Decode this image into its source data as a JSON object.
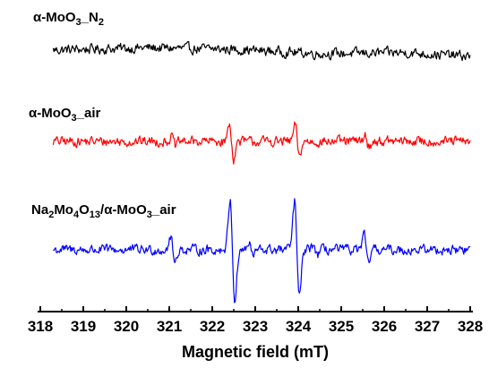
{
  "chart_data": {
    "type": "line",
    "title": "",
    "xlabel": "Magnetic field (mT)",
    "ylabel": "",
    "xlim": [
      318,
      328
    ],
    "x_ticks": [
      "318",
      "319",
      "320",
      "321",
      "322",
      "323",
      "324",
      "325",
      "326",
      "327",
      "328"
    ],
    "y_axis_visible": false,
    "grid": false,
    "legend": "none (series labels printed above each trace)",
    "x_range": [
      318.3,
      328
    ],
    "series": [
      {
        "name": "α-MoO3_N2",
        "label_parts": [
          {
            "t": "α-MoO",
            "sub": false
          },
          {
            "t": "3",
            "sub": true
          },
          {
            "t": "_N",
            "sub": false
          },
          {
            "t": "2",
            "sub": true
          }
        ],
        "color": "#000000",
        "noise": 0.9,
        "trend": [
          [
            318.3,
            0.2
          ],
          [
            320.5,
            0.6
          ],
          [
            322.5,
            0.3
          ],
          [
            324.5,
            -0.5
          ],
          [
            326.5,
            -0.3
          ],
          [
            328,
            -1.0
          ]
        ],
        "features": []
      },
      {
        "name": "α-MoO3_air",
        "label_parts": [
          {
            "t": "α-MoO",
            "sub": false
          },
          {
            "t": "3",
            "sub": true
          },
          {
            "t": "_air",
            "sub": false
          }
        ],
        "color": "#ff0000",
        "noise": 0.9,
        "trend": [
          [
            318.3,
            0
          ],
          [
            328,
            0
          ]
        ],
        "features": [
          {
            "x": 322.45,
            "amp": 3.2,
            "w": 0.05
          },
          {
            "x": 323.98,
            "amp": 3.0,
            "w": 0.05
          },
          {
            "x": 321.1,
            "amp": 0.9,
            "w": 0.05
          },
          {
            "x": 325.6,
            "amp": 1.0,
            "w": 0.05
          }
        ]
      },
      {
        "name": "Na2Mo4O13/α-MoO3_air",
        "label_parts": [
          {
            "t": "Na",
            "sub": false
          },
          {
            "t": "2",
            "sub": true
          },
          {
            "t": "Mo",
            "sub": false
          },
          {
            "t": "4",
            "sub": true
          },
          {
            "t": "O",
            "sub": false
          },
          {
            "t": "13",
            "sub": true
          },
          {
            "t": "/α-MoO",
            "sub": false
          },
          {
            "t": "3",
            "sub": true
          },
          {
            "t": "_air",
            "sub": false
          }
        ],
        "color": "#0000ff",
        "noise": 0.9,
        "trend": [
          [
            318.3,
            0
          ],
          [
            328,
            0
          ]
        ],
        "features": [
          {
            "x": 322.47,
            "amp": 9.5,
            "w": 0.055
          },
          {
            "x": 323.97,
            "amp": 9.0,
            "w": 0.055
          },
          {
            "x": 321.08,
            "amp": 2.4,
            "w": 0.05
          },
          {
            "x": 325.58,
            "amp": 2.5,
            "w": 0.05
          },
          {
            "x": 322.9,
            "amp": 1.1,
            "w": 0.05
          },
          {
            "x": 324.4,
            "amp": 1.0,
            "w": 0.05
          }
        ]
      }
    ]
  }
}
